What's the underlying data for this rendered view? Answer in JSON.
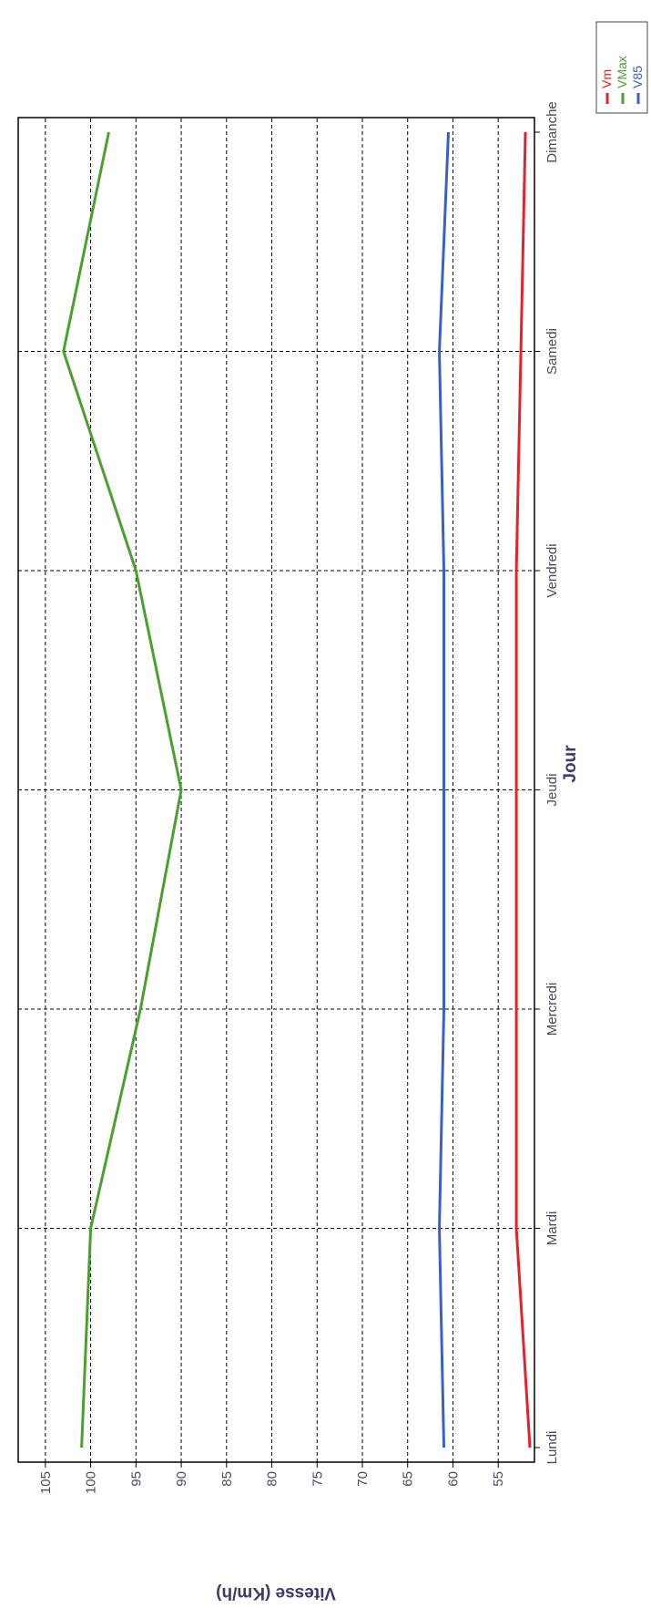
{
  "chart_data": {
    "type": "line",
    "title": "",
    "xlabel": "Jour",
    "ylabel": "Vitesse (Km/h)",
    "categories": [
      "Lundi",
      "Mardi",
      "Mercredi",
      "Jeudi",
      "Vendredi",
      "Samedi",
      "Dimanche"
    ],
    "yticks": [
      55,
      60,
      65,
      70,
      75,
      80,
      85,
      90,
      95,
      100,
      105
    ],
    "ylim": [
      51,
      108
    ],
    "grid": true,
    "legend_position": "top-right",
    "series": [
      {
        "name": "Vm",
        "color": "#e8202a",
        "values": [
          51.5,
          53,
          53,
          53,
          53,
          52.5,
          52
        ]
      },
      {
        "name": "VMax",
        "color": "#4aa02c",
        "values": [
          101,
          100,
          94.5,
          90,
          95,
          103,
          98
        ]
      },
      {
        "name": "V85",
        "color": "#3a5fcd",
        "values": [
          61,
          61.5,
          61,
          61,
          61,
          61.5,
          60.5
        ]
      }
    ]
  }
}
